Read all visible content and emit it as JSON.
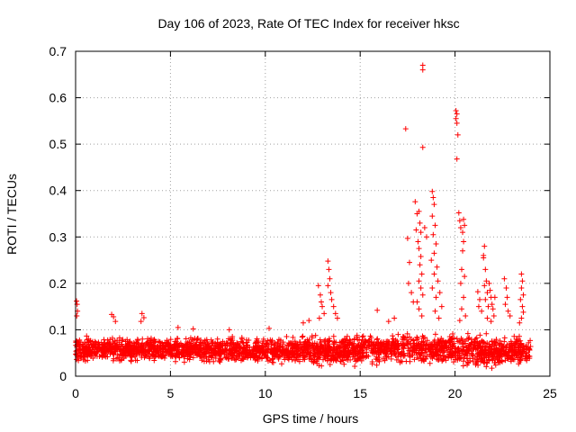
{
  "chart_data": {
    "type": "scatter",
    "title": "Day 106 of 2023, Rate Of TEC Index for receiver hksc",
    "xlabel": "GPS time / hours",
    "ylabel": "ROTI / TECUs",
    "xlim": [
      0,
      25
    ],
    "ylim": [
      0,
      0.7
    ],
    "xticks": [
      0,
      5,
      10,
      15,
      20,
      25
    ],
    "yticks": [
      0,
      0.1,
      0.2,
      0.3,
      0.4,
      0.5,
      0.6,
      0.7
    ],
    "grid": true,
    "marker": "+",
    "color": "#ff0000",
    "series": [
      {
        "name": "ROTI",
        "baseline": {
          "x_start": 0,
          "x_end": 24,
          "typical_range": [
            0.02,
            0.09
          ],
          "profile": [
            {
              "x": 0,
              "low": 0.02,
              "high": 0.095
            },
            {
              "x": 2,
              "low": 0.025,
              "high": 0.09
            },
            {
              "x": 5,
              "low": 0.025,
              "high": 0.09
            },
            {
              "x": 8,
              "low": 0.02,
              "high": 0.09
            },
            {
              "x": 11,
              "low": 0.02,
              "high": 0.09
            },
            {
              "x": 14,
              "low": 0.015,
              "high": 0.095
            },
            {
              "x": 17,
              "low": 0.02,
              "high": 0.1
            },
            {
              "x": 20,
              "low": 0.02,
              "high": 0.1
            },
            {
              "x": 22,
              "low": 0.005,
              "high": 0.1
            },
            {
              "x": 24,
              "low": 0.02,
              "high": 0.09
            }
          ]
        },
        "points": [
          {
            "x": 0.05,
            "y": 0.162
          },
          {
            "x": 0.08,
            "y": 0.155
          },
          {
            "x": 0.1,
            "y": 0.14
          },
          {
            "x": 0.06,
            "y": 0.13
          },
          {
            "x": 1.9,
            "y": 0.133
          },
          {
            "x": 2.0,
            "y": 0.128
          },
          {
            "x": 2.1,
            "y": 0.118
          },
          {
            "x": 3.5,
            "y": 0.135
          },
          {
            "x": 3.6,
            "y": 0.126
          },
          {
            "x": 3.45,
            "y": 0.118
          },
          {
            "x": 5.4,
            "y": 0.105
          },
          {
            "x": 6.2,
            "y": 0.102
          },
          {
            "x": 8.1,
            "y": 0.1
          },
          {
            "x": 10.2,
            "y": 0.103
          },
          {
            "x": 12.0,
            "y": 0.115
          },
          {
            "x": 12.3,
            "y": 0.12
          },
          {
            "x": 12.8,
            "y": 0.195
          },
          {
            "x": 12.9,
            "y": 0.175
          },
          {
            "x": 12.95,
            "y": 0.16
          },
          {
            "x": 13.0,
            "y": 0.15
          },
          {
            "x": 13.1,
            "y": 0.135
          },
          {
            "x": 12.85,
            "y": 0.125
          },
          {
            "x": 13.3,
            "y": 0.248
          },
          {
            "x": 13.35,
            "y": 0.23
          },
          {
            "x": 13.4,
            "y": 0.21
          },
          {
            "x": 13.3,
            "y": 0.195
          },
          {
            "x": 13.45,
            "y": 0.18
          },
          {
            "x": 13.5,
            "y": 0.165
          },
          {
            "x": 13.6,
            "y": 0.15
          },
          {
            "x": 13.7,
            "y": 0.135
          },
          {
            "x": 13.8,
            "y": 0.125
          },
          {
            "x": 15.9,
            "y": 0.142
          },
          {
            "x": 16.5,
            "y": 0.118
          },
          {
            "x": 16.8,
            "y": 0.125
          },
          {
            "x": 17.4,
            "y": 0.533
          },
          {
            "x": 17.5,
            "y": 0.297
          },
          {
            "x": 17.6,
            "y": 0.245
          },
          {
            "x": 17.55,
            "y": 0.2
          },
          {
            "x": 17.7,
            "y": 0.18
          },
          {
            "x": 17.8,
            "y": 0.16
          },
          {
            "x": 17.9,
            "y": 0.376
          },
          {
            "x": 18.0,
            "y": 0.35
          },
          {
            "x": 17.95,
            "y": 0.315
          },
          {
            "x": 18.05,
            "y": 0.29
          },
          {
            "x": 18.1,
            "y": 0.355
          },
          {
            "x": 18.15,
            "y": 0.33
          },
          {
            "x": 18.2,
            "y": 0.31
          },
          {
            "x": 18.1,
            "y": 0.275
          },
          {
            "x": 18.2,
            "y": 0.258
          },
          {
            "x": 18.15,
            "y": 0.24
          },
          {
            "x": 18.25,
            "y": 0.22
          },
          {
            "x": 18.1,
            "y": 0.205
          },
          {
            "x": 18.2,
            "y": 0.19
          },
          {
            "x": 18.3,
            "y": 0.175
          },
          {
            "x": 18.0,
            "y": 0.16
          },
          {
            "x": 18.1,
            "y": 0.145
          },
          {
            "x": 18.25,
            "y": 0.13
          },
          {
            "x": 18.3,
            "y": 0.67
          },
          {
            "x": 18.3,
            "y": 0.66
          },
          {
            "x": 18.3,
            "y": 0.493
          },
          {
            "x": 18.4,
            "y": 0.32
          },
          {
            "x": 18.5,
            "y": 0.3
          },
          {
            "x": 18.8,
            "y": 0.398
          },
          {
            "x": 18.85,
            "y": 0.385
          },
          {
            "x": 18.9,
            "y": 0.37
          },
          {
            "x": 18.8,
            "y": 0.345
          },
          {
            "x": 18.95,
            "y": 0.325
          },
          {
            "x": 18.85,
            "y": 0.305
          },
          {
            "x": 19.0,
            "y": 0.285
          },
          {
            "x": 18.9,
            "y": 0.265
          },
          {
            "x": 18.75,
            "y": 0.25
          },
          {
            "x": 19.05,
            "y": 0.235
          },
          {
            "x": 18.9,
            "y": 0.22
          },
          {
            "x": 19.1,
            "y": 0.205
          },
          {
            "x": 18.8,
            "y": 0.19
          },
          {
            "x": 19.2,
            "y": 0.18
          },
          {
            "x": 19.0,
            "y": 0.17
          },
          {
            "x": 19.3,
            "y": 0.15
          },
          {
            "x": 18.95,
            "y": 0.14
          },
          {
            "x": 19.15,
            "y": 0.125
          },
          {
            "x": 20.05,
            "y": 0.572
          },
          {
            "x": 20.1,
            "y": 0.565
          },
          {
            "x": 20.05,
            "y": 0.555
          },
          {
            "x": 20.1,
            "y": 0.545
          },
          {
            "x": 20.15,
            "y": 0.52
          },
          {
            "x": 20.1,
            "y": 0.468
          },
          {
            "x": 20.2,
            "y": 0.352
          },
          {
            "x": 20.25,
            "y": 0.335
          },
          {
            "x": 20.3,
            "y": 0.32
          },
          {
            "x": 20.4,
            "y": 0.31
          },
          {
            "x": 20.45,
            "y": 0.338
          },
          {
            "x": 20.5,
            "y": 0.325
          },
          {
            "x": 20.45,
            "y": 0.29
          },
          {
            "x": 20.4,
            "y": 0.27
          },
          {
            "x": 20.35,
            "y": 0.23
          },
          {
            "x": 20.5,
            "y": 0.215
          },
          {
            "x": 20.3,
            "y": 0.2
          },
          {
            "x": 20.45,
            "y": 0.17
          },
          {
            "x": 20.35,
            "y": 0.145
          },
          {
            "x": 20.55,
            "y": 0.13
          },
          {
            "x": 20.25,
            "y": 0.12
          },
          {
            "x": 21.2,
            "y": 0.182
          },
          {
            "x": 21.3,
            "y": 0.165
          },
          {
            "x": 21.25,
            "y": 0.15
          },
          {
            "x": 21.4,
            "y": 0.14
          },
          {
            "x": 21.5,
            "y": 0.26
          },
          {
            "x": 21.55,
            "y": 0.28
          },
          {
            "x": 21.5,
            "y": 0.255
          },
          {
            "x": 21.6,
            "y": 0.23
          },
          {
            "x": 21.65,
            "y": 0.205
          },
          {
            "x": 21.55,
            "y": 0.195
          },
          {
            "x": 21.7,
            "y": 0.18
          },
          {
            "x": 21.6,
            "y": 0.165
          },
          {
            "x": 21.75,
            "y": 0.15
          },
          {
            "x": 21.8,
            "y": 0.2
          },
          {
            "x": 21.85,
            "y": 0.185
          },
          {
            "x": 21.9,
            "y": 0.17
          },
          {
            "x": 21.95,
            "y": 0.155
          },
          {
            "x": 22.0,
            "y": 0.145
          },
          {
            "x": 22.05,
            "y": 0.13
          },
          {
            "x": 21.7,
            "y": 0.125
          },
          {
            "x": 21.9,
            "y": 0.118
          },
          {
            "x": 22.1,
            "y": 0.17
          },
          {
            "x": 22.6,
            "y": 0.21
          },
          {
            "x": 22.7,
            "y": 0.19
          },
          {
            "x": 22.75,
            "y": 0.17
          },
          {
            "x": 22.65,
            "y": 0.155
          },
          {
            "x": 22.8,
            "y": 0.14
          },
          {
            "x": 22.9,
            "y": 0.13
          },
          {
            "x": 23.5,
            "y": 0.22
          },
          {
            "x": 23.55,
            "y": 0.205
          },
          {
            "x": 23.5,
            "y": 0.19
          },
          {
            "x": 23.6,
            "y": 0.175
          },
          {
            "x": 23.45,
            "y": 0.165
          },
          {
            "x": 23.55,
            "y": 0.15
          },
          {
            "x": 23.6,
            "y": 0.138
          },
          {
            "x": 23.5,
            "y": 0.125
          },
          {
            "x": 23.4,
            "y": 0.115
          }
        ]
      }
    ]
  }
}
